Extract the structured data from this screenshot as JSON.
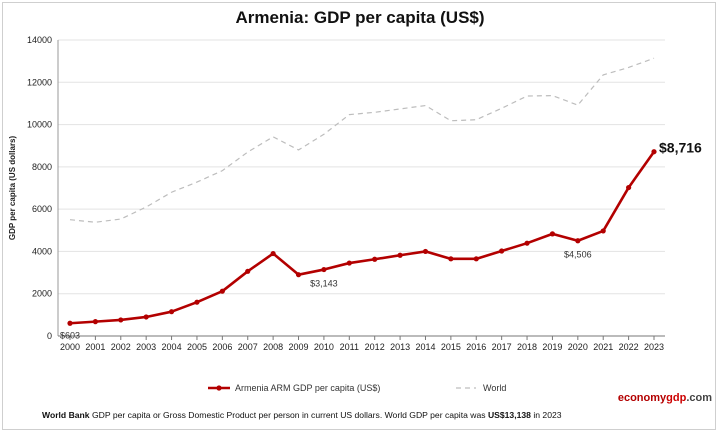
{
  "chart_data": {
    "type": "line",
    "title": "Armenia: GDP per capita (US$)",
    "ylabel": "GDP per capita (US dollars)",
    "xlabel": "",
    "ylim": [
      0,
      14000
    ],
    "yticks": [
      0,
      2000,
      4000,
      6000,
      8000,
      10000,
      12000,
      14000
    ],
    "grid": true,
    "legend_position": "bottom",
    "x": [
      "2000",
      "2001",
      "2002",
      "2003",
      "2004",
      "2005",
      "2006",
      "2007",
      "2008",
      "2009",
      "2010",
      "2011",
      "2012",
      "2013",
      "2014",
      "2015",
      "2016",
      "2017",
      "2018",
      "2019",
      "2020",
      "2021",
      "2022",
      "2023"
    ],
    "series": [
      {
        "name": "Armenia ARM GDP per capita (US$)",
        "color": "#b30000",
        "style": "solid-markers",
        "values": [
          603,
          680,
          760,
          900,
          1150,
          1600,
          2120,
          3060,
          3900,
          2900,
          3143,
          3450,
          3630,
          3820,
          4000,
          3650,
          3650,
          4020,
          4390,
          4830,
          4506,
          4970,
          7020,
          8716
        ]
      },
      {
        "name": "World",
        "color": "#bdbdbd",
        "style": "dashed",
        "values": [
          5500,
          5380,
          5530,
          6100,
          6800,
          7280,
          7820,
          8700,
          9420,
          8800,
          9540,
          10470,
          10580,
          10740,
          10900,
          10180,
          10230,
          10770,
          11350,
          11370,
          10920,
          12350,
          12700,
          13138
        ]
      }
    ],
    "annotations": [
      {
        "x": "2000",
        "text": "$603"
      },
      {
        "x": "2010",
        "text": "$3,143"
      },
      {
        "x": "2020",
        "text": "$4,506"
      },
      {
        "x": "2023",
        "text": "$8,716"
      }
    ]
  },
  "brand": {
    "part1": "economy",
    "part2": "gdp",
    "part3": ".com"
  },
  "footer": {
    "source": "World Bank",
    "text1": " GDP per capita or Gross Domestic Product per person in current US dollars.   World GDP per capita was ",
    "value": "US$13,138",
    "text2": " in 2023"
  }
}
